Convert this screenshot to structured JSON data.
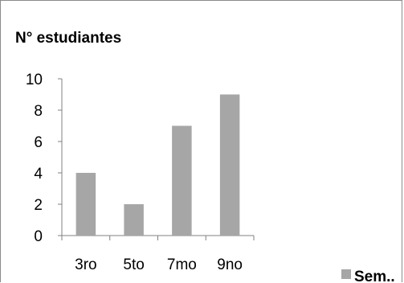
{
  "chart_data": {
    "type": "bar",
    "title": "N° estudiantes",
    "categories": [
      "3ro",
      "5to",
      "7mo",
      "9no"
    ],
    "series": [
      {
        "name": "Sem..",
        "values": [
          4,
          2,
          7,
          9
        ],
        "color": "#a6a6a6"
      }
    ],
    "ylim": [
      0,
      10
    ],
    "yticks": [
      0,
      2,
      4,
      6,
      8,
      10
    ],
    "grid": false,
    "legend_position": "bottom-right",
    "axis_color": "#808080"
  }
}
